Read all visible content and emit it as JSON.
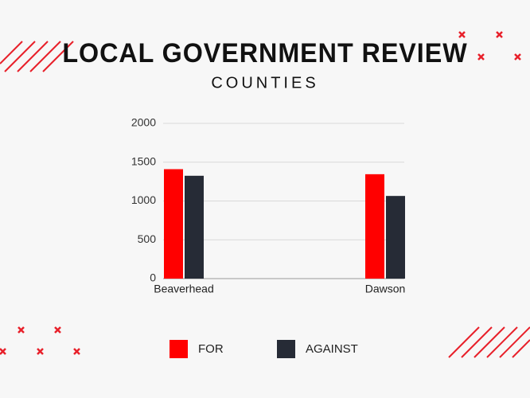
{
  "chart_data": {
    "type": "bar",
    "title": "LOCAL GOVERNMENT REVIEW",
    "subtitle": "COUNTIES",
    "categories": [
      "Beaverhead",
      "Dawson"
    ],
    "series": [
      {
        "name": "FOR",
        "color": "#ff0000",
        "values": [
          1410,
          1345
        ]
      },
      {
        "name": "AGAINST",
        "color": "#262b36",
        "values": [
          1325,
          1065
        ]
      }
    ],
    "ylim": [
      0,
      2000
    ],
    "yticks": [
      0,
      500,
      1000,
      1500,
      2000
    ],
    "grid": true,
    "legend": "bottom"
  }
}
